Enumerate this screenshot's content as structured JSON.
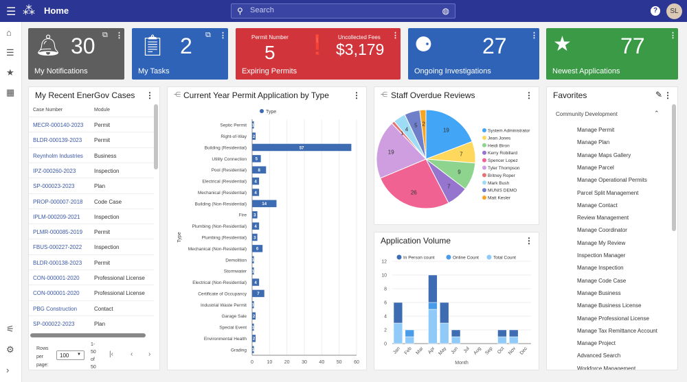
{
  "header": {
    "title": "Home",
    "search_placeholder": "Search",
    "help": "?",
    "avatar": "SL"
  },
  "cards": {
    "notifications": {
      "value": "30",
      "label": "My Notifications"
    },
    "tasks": {
      "value": "2",
      "label": "My Tasks"
    },
    "expiring": {
      "permit_label": "Permit Number",
      "permit_value": "5",
      "fees_label": "Uncollected Fees",
      "fees_value": "$3,179",
      "label": "Expiring Permits"
    },
    "investigations": {
      "value": "27",
      "label": "Ongoing Investigations"
    },
    "applications": {
      "value": "77",
      "label": "Newest Applications"
    }
  },
  "cases": {
    "title": "My Recent EnerGov Cases",
    "col1": "Case Number",
    "col2": "Module",
    "rows": [
      [
        "MECR-000140-2023",
        "Permit"
      ],
      [
        "BLDR-000139-2023",
        "Permit"
      ],
      [
        "Reynholm Industries",
        "Business"
      ],
      [
        "IPZ-000260-2023",
        "Inspection"
      ],
      [
        "SP-000023-2023",
        "Plan"
      ],
      [
        "PROP-000007-2018",
        "Code Case"
      ],
      [
        "IPLM-000209-2021",
        "Inspection"
      ],
      [
        "PLMR-000085-2019",
        "Permit"
      ],
      [
        "FBUS-000227-2022",
        "Inspection"
      ],
      [
        "BLDR-000138-2023",
        "Permit"
      ],
      [
        "CON-000001-2020",
        "Professional License"
      ],
      [
        "CON-000001-2020",
        "Professional License"
      ],
      [
        "PBG Construction",
        "Contact"
      ],
      [
        "SP-000022-2023",
        "Plan"
      ]
    ],
    "rows_per_page_label": "Rows per page:",
    "rows_per_page": "100",
    "range": "1-50 of 50"
  },
  "favorites": {
    "title": "Favorites",
    "group": "Community Development",
    "items": [
      "Manage Permit",
      "Manage Plan",
      "Manage Maps Gallery",
      "Manage Parcel",
      "Manage Operational Permits",
      "Parcel Split Management",
      "Manage Contact",
      "Review Management",
      "Manage Coordinator",
      "Manage My Review",
      "Inspection Manager",
      "Manage Inspection",
      "Manage Code Case",
      "Manage Business",
      "Manage Business License",
      "Manage Professional License",
      "Manage Tax Remittance Account",
      "Manage Project",
      "Advanced Search",
      "Workforce Management"
    ]
  },
  "chart_data": [
    {
      "type": "bar",
      "orientation": "horizontal",
      "title": "Current Year Permit Application by Type",
      "legend": [
        "Type"
      ],
      "ylabel": "Type",
      "xlabel": "",
      "xlim": [
        0,
        60
      ],
      "xticks": [
        0,
        10,
        20,
        30,
        40,
        50,
        60
      ],
      "color": "#3d6cb3",
      "categories": [
        "Septic Permit",
        "Right-of-Way",
        "Building (Residential)",
        "Utility Connection",
        "Pool (Residential)",
        "Electrical (Residential)",
        "Mechanical (Residential)",
        "Building (Non-Residential)",
        "Fire",
        "Plumbing (Non-Residential)",
        "Plumbing (Residential)",
        "Mechanical (Non-Residential)",
        "Demolition",
        "Stormwater",
        "Electrical (Non-Residential)",
        "Certificate of Occupancy",
        "Industrial Waste Permit",
        "Garage Sale",
        "Special Event",
        "Environmental Health",
        "Grading"
      ],
      "values": [
        1,
        2,
        57,
        5,
        8,
        4,
        4,
        14,
        3,
        4,
        3,
        6,
        1,
        1,
        4,
        7,
        1,
        2,
        1,
        2,
        1
      ]
    },
    {
      "type": "pie",
      "title": "Staff Overdue Reviews",
      "legend_position": "right",
      "labels": [
        "System Administrator",
        "Jean Jones",
        "Heidi Biron",
        "Kerry Robillard",
        "Spencer Lopez",
        "Tyler Thompson",
        "Britney Roper",
        "Mark Bush",
        "MUNIS DEMO",
        "Matt Kesler"
      ],
      "values": [
        19,
        7,
        9,
        7,
        26,
        19,
        1,
        4,
        5,
        2
      ],
      "colors": [
        "#42a5f5",
        "#fdd85d",
        "#8ed48e",
        "#9575cd",
        "#f06292",
        "#ce9ee0",
        "#e57373",
        "#9edcf5",
        "#6f7fc9",
        "#f5a623"
      ]
    },
    {
      "type": "bar",
      "stacked": true,
      "title": "Application Volume",
      "xlabel": "Month",
      "ylim": [
        0,
        12
      ],
      "yticks": [
        0,
        2,
        4,
        6,
        8,
        10,
        12
      ],
      "categories": [
        "Jan",
        "Feb",
        "Mar",
        "Apr",
        "May",
        "Jun",
        "Jul",
        "Aug",
        "Sep",
        "Oct",
        "Nov",
        "Dec"
      ],
      "series": [
        {
          "name": "Total Count",
          "color": "#90caf9",
          "values": [
            3,
            1,
            0,
            5,
            3,
            1,
            0,
            0,
            0,
            1,
            1,
            0
          ]
        },
        {
          "name": "Online Count",
          "color": "#4a9be8",
          "values": [
            0,
            1,
            0,
            1,
            0,
            0,
            0,
            0,
            0,
            0,
            0,
            0
          ]
        },
        {
          "name": "In Person count",
          "color": "#3d6cb3",
          "values": [
            3,
            0,
            0,
            4,
            3,
            1,
            0,
            0,
            0,
            1,
            1,
            0
          ]
        }
      ],
      "legend_order": [
        "In Person count",
        "Online Count",
        "Total Count"
      ]
    }
  ]
}
